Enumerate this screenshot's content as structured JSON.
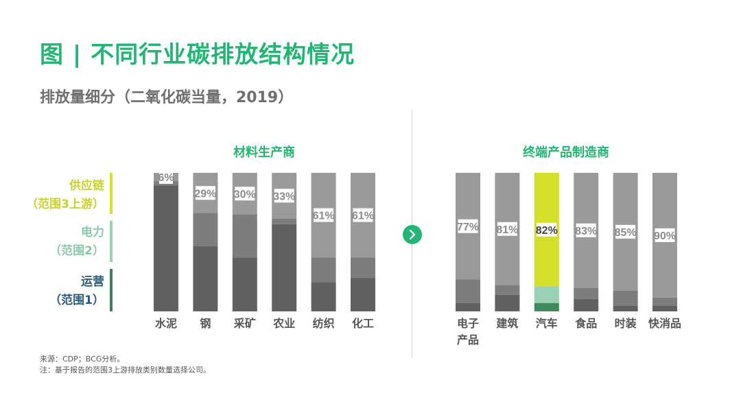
{
  "title": "图 | 不同行业碳排放结构情况",
  "subtitle": "排放量细分（二氧化碳当量，2019）",
  "legend": [
    {
      "line1": "供应链",
      "line2": "（范围3上游）",
      "color": "#c8d22e"
    },
    {
      "line1": "电力",
      "line2": "（范围2）",
      "color": "#8cc8a8"
    },
    {
      "line1": "运营",
      "line2": "（范围1）",
      "color": "#2e5a74"
    }
  ],
  "legend_bar_colors": [
    "#d4df2a",
    "#9ad0b4",
    "#3e7e5e"
  ],
  "colors": {
    "supply": "#9a9a9a",
    "power": "#7d7d7d",
    "ops": "#616161",
    "highlight_supply": "#d4df2a",
    "highlight_power": "#9ad0b4",
    "highlight_ops": "#3e8a5e",
    "accent": "#22b573"
  },
  "chart_data": {
    "type": "bar",
    "stacked": true,
    "normalized": true,
    "series_names": [
      "运营（范围1）",
      "电力（范围2）",
      "供应链（范围3上游）"
    ],
    "groups": [
      {
        "title": "材料生产商",
        "categories": [
          "水泥",
          "钢",
          "采矿",
          "农业",
          "纺织",
          "化工"
        ],
        "category_lines": [
          [
            "水泥"
          ],
          [
            "钢"
          ],
          [
            "采矿"
          ],
          [
            "农业"
          ],
          [
            "纺织"
          ],
          [
            "化工"
          ]
        ],
        "ops": [
          91,
          47,
          39,
          63,
          21,
          24
        ],
        "power": [
          3,
          24,
          31,
          4,
          18,
          15
        ],
        "supply": [
          6,
          29,
          30,
          33,
          61,
          61
        ],
        "labels": [
          "6%",
          "29%",
          "30%",
          "33%",
          "61%",
          "61%"
        ]
      },
      {
        "title": "终端产品制造商",
        "categories": [
          "电子产品",
          "建筑",
          "汽车",
          "食品",
          "时装",
          "快消品"
        ],
        "category_lines": [
          [
            "电子",
            "产品"
          ],
          [
            "建筑"
          ],
          [
            "汽车"
          ],
          [
            "食品"
          ],
          [
            "时装"
          ],
          [
            "快消品"
          ]
        ],
        "ops": [
          6,
          12,
          6,
          9,
          4,
          4
        ],
        "power": [
          17,
          7,
          12,
          8,
          11,
          6
        ],
        "supply": [
          77,
          81,
          82,
          83,
          85,
          90
        ],
        "labels": [
          "77%",
          "81%",
          "82%",
          "83%",
          "85%",
          "90%"
        ],
        "highlight_index": 2
      }
    ]
  },
  "source": {
    "line1": "来源：CDP；BCG分析。",
    "line2": "注：基于报告的范围3上游排放类别数量选择公司。"
  }
}
